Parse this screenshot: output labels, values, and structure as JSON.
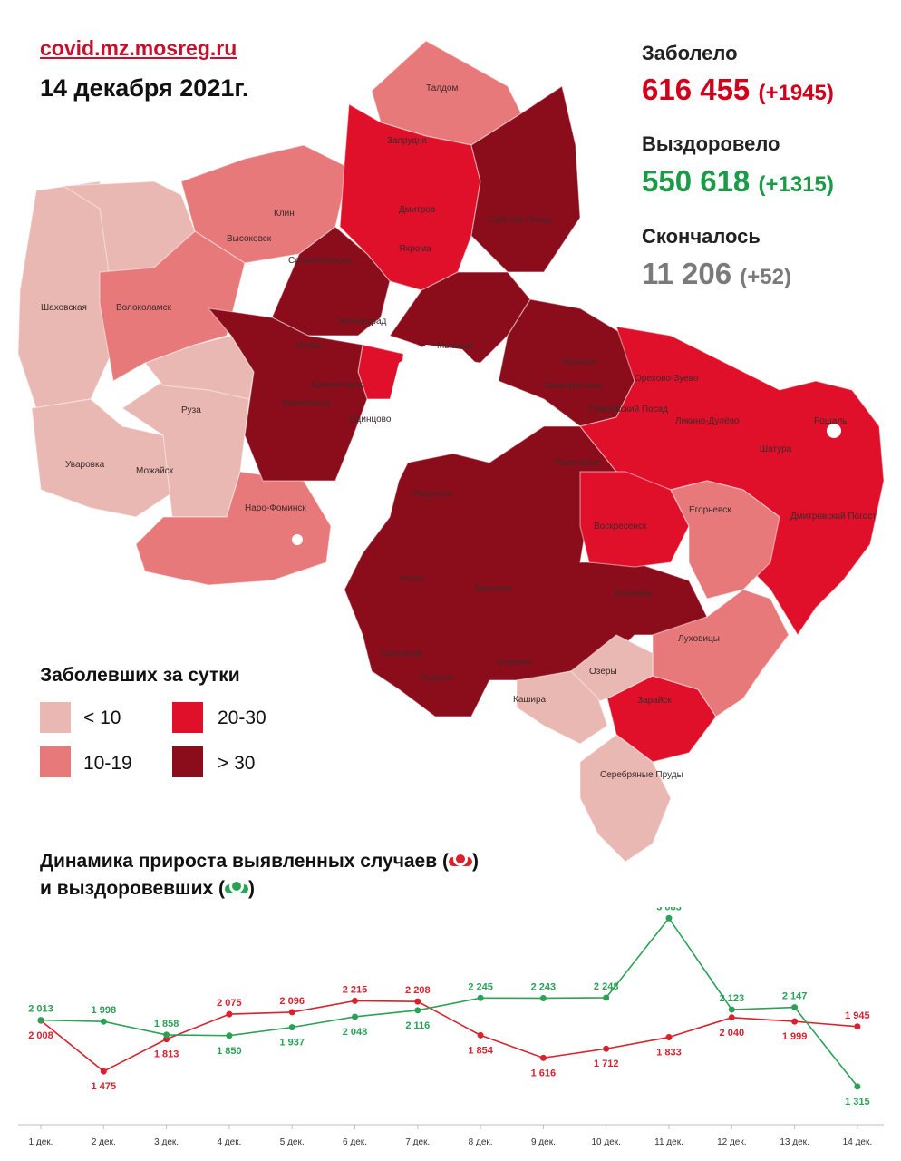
{
  "header": {
    "site": "covid.mz.mosreg.ru",
    "date": "14 декабря 2021г."
  },
  "stats": {
    "sick": {
      "label": "Заболело",
      "value": "616 455",
      "delta": "(+1945)",
      "color": "#d0021b"
    },
    "recovered": {
      "label": "Выздоровело",
      "value": "550 618",
      "delta": "(+1315)",
      "color": "#1a9b47"
    },
    "died": {
      "label": "Скончалось",
      "value": "11 206",
      "delta": "(+52)",
      "color": "#7a7a7a"
    }
  },
  "legend": {
    "title": "Заболевших за сутки",
    "items": [
      {
        "label": "< 10",
        "color": "#eab8b3"
      },
      {
        "label": "20-30",
        "color": "#e0102a"
      },
      {
        "label": "10-19",
        "color": "#e7797a"
      },
      {
        "label": "> 30",
        "color": "#8b0d1c"
      }
    ]
  },
  "map": {
    "labels": [
      "Талдом",
      "Запрудня",
      "Дмитров",
      "Яхрома",
      "Сергиев Посад",
      "Клин",
      "Высоковск",
      "Солнечногорск",
      "Шаховская",
      "Волоколамск",
      "Зеленоград",
      "Истра",
      "Мытищи",
      "Ногинск",
      "Электросталь",
      "Орехово-Зуево",
      "Красногорск",
      "Звенигород",
      "Одинцово",
      "Павловский Посад",
      "Ликино-Дулёво",
      "Рошаль",
      "Руза",
      "Шатура",
      "Раменское",
      "Уваровка",
      "Можайск",
      "Наро-Фоминск",
      "Подольск",
      "Егорьевск",
      "Воскресенск",
      "Дмитровский Погост",
      "Чехов",
      "Михнево",
      "Коломна",
      "Луховицы",
      "Серпухов",
      "Пущино",
      "Ступино",
      "Озёры",
      "Кашира",
      "Зарайск",
      "Серебряные Пруды"
    ]
  },
  "chart": {
    "title_line1": "Динамика прироста выявленных случаев (",
    "title_line1_end": ")",
    "title_line2": "и выздоровевших (",
    "title_line2_end": ")"
  },
  "chart_data": {
    "type": "line",
    "categories": [
      "1 дек.",
      "2 дек.",
      "3 дек.",
      "4 дек.",
      "5 дек.",
      "6 дек.",
      "7 дек.",
      "8 дек.",
      "9 дек.",
      "10 дек.",
      "11 дек.",
      "12 дек.",
      "13 дек.",
      "14 дек."
    ],
    "series": [
      {
        "key": "cases",
        "color": "#d7232e",
        "values": [
          2008,
          1475,
          1813,
          2075,
          2096,
          2215,
          2208,
          1854,
          1616,
          1712,
          1833,
          2040,
          1999,
          1945
        ],
        "labels": [
          "2 008",
          "1 475",
          "1 813",
          "2 075",
          "2 096",
          "2 215",
          "2 208",
          "1 854",
          "1 616",
          "1 712",
          "1 833",
          "2 040",
          "1 999",
          "1 945"
        ]
      },
      {
        "key": "recovered",
        "color": "#2aa155",
        "values": [
          2013,
          1998,
          1858,
          1850,
          1937,
          2048,
          2116,
          2245,
          2243,
          2248,
          3083,
          2123,
          2147,
          1315
        ],
        "labels": [
          "2 013",
          "1 998",
          "1 858",
          "1 850",
          "1 937",
          "2 048",
          "2 116",
          "2 245",
          "2 243",
          "2 248",
          "3 083",
          "2 123",
          "2 147",
          "1 315"
        ]
      }
    ],
    "ylim": [
      1200,
      3200
    ],
    "grid": false,
    "legend": "title"
  }
}
